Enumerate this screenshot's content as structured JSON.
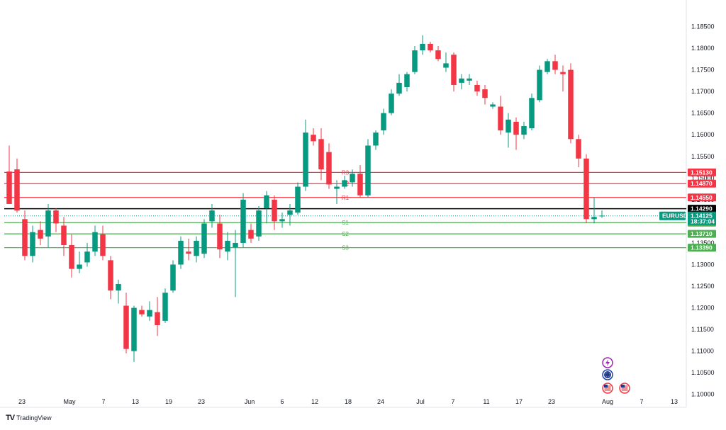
{
  "chart_data": {
    "type": "candlestick",
    "symbol": "EURUSD",
    "last_price": "1.14125",
    "countdown": "18:37:04",
    "ylim": [
      1.0975,
      1.1895
    ],
    "y_ticks": [
      "1.18500",
      "1.18000",
      "1.17500",
      "1.17000",
      "1.16500",
      "1.16000",
      "1.15500",
      "1.15000",
      "1.14500",
      "1.14000",
      "1.13500",
      "1.13000",
      "1.12500",
      "1.12000",
      "1.11500",
      "1.11000",
      "1.10500",
      "1.10000"
    ],
    "x_ticks": [
      "23",
      "May",
      "7",
      "13",
      "19",
      "23",
      "Jun",
      "6",
      "12",
      "18",
      "24",
      "Jul",
      "7",
      "11",
      "17",
      "23",
      "Aug",
      "7",
      "13"
    ],
    "levels": [
      {
        "label": "R3",
        "price": "1.15130",
        "value": 1.1513,
        "color": "#f23645"
      },
      {
        "label": "R2",
        "price": "1.14870",
        "value": 1.1487,
        "color": "#f23645"
      },
      {
        "label": "R1",
        "price": "1.14550",
        "value": 1.1455,
        "color": "#f23645"
      },
      {
        "label": "",
        "price": "1.14290",
        "value": 1.1429,
        "color": "#000000"
      },
      {
        "label": "S1",
        "price": "1.13970",
        "value": 1.1397,
        "color": "#4caf50"
      },
      {
        "label": "S2",
        "price": "1.13710",
        "value": 1.1371,
        "color": "#4caf50"
      },
      {
        "label": "S3",
        "price": "1.13390",
        "value": 1.1339,
        "color": "#4caf50"
      }
    ],
    "candles": [
      [
        1.1515,
        1.1575,
        1.1445,
        1.144
      ],
      [
        1.152,
        1.1545,
        1.142,
        1.1425
      ],
      [
        1.1405,
        1.1425,
        1.131,
        1.132
      ],
      [
        1.132,
        1.139,
        1.1305,
        1.1375
      ],
      [
        1.138,
        1.14,
        1.1345,
        1.136
      ],
      [
        1.1365,
        1.144,
        1.134,
        1.1425
      ],
      [
        1.1425,
        1.143,
        1.1375,
        1.1395
      ],
      [
        1.139,
        1.141,
        1.132,
        1.1345
      ],
      [
        1.1345,
        1.137,
        1.127,
        1.129
      ],
      [
        1.129,
        1.133,
        1.128,
        1.13
      ],
      [
        1.1305,
        1.135,
        1.1295,
        1.133
      ],
      [
        1.133,
        1.139,
        1.132,
        1.1375
      ],
      [
        1.137,
        1.139,
        1.131,
        1.132
      ],
      [
        1.131,
        1.132,
        1.122,
        1.124
      ],
      [
        1.124,
        1.1265,
        1.121,
        1.1255
      ],
      [
        1.1205,
        1.1235,
        1.1095,
        1.1105
      ],
      [
        1.11,
        1.1205,
        1.1075,
        1.12
      ],
      [
        1.1195,
        1.1205,
        1.118,
        1.1185
      ],
      [
        1.118,
        1.1215,
        1.117,
        1.1195
      ],
      [
        1.119,
        1.1225,
        1.1135,
        1.116
      ],
      [
        1.117,
        1.1245,
        1.1165,
        1.1235
      ],
      [
        1.124,
        1.131,
        1.1235,
        1.13
      ],
      [
        1.13,
        1.1365,
        1.129,
        1.1355
      ],
      [
        1.133,
        1.136,
        1.131,
        1.1325
      ],
      [
        1.132,
        1.1365,
        1.1305,
        1.1355
      ],
      [
        1.1325,
        1.1405,
        1.1315,
        1.1395
      ],
      [
        1.14,
        1.144,
        1.1385,
        1.1425
      ],
      [
        1.1395,
        1.1415,
        1.1315,
        1.1335
      ],
      [
        1.133,
        1.1375,
        1.131,
        1.1355
      ],
      [
        1.134,
        1.138,
        1.1225,
        1.135
      ],
      [
        1.135,
        1.1465,
        1.134,
        1.145
      ],
      [
        1.138,
        1.1395,
        1.135,
        1.136
      ],
      [
        1.1365,
        1.1435,
        1.1355,
        1.1425
      ],
      [
        1.143,
        1.147,
        1.1395,
        1.146
      ],
      [
        1.145,
        1.146,
        1.138,
        1.14
      ],
      [
        1.14,
        1.142,
        1.1385,
        1.1405
      ],
      [
        1.1415,
        1.144,
        1.139,
        1.1425
      ],
      [
        1.142,
        1.149,
        1.1415,
        1.148
      ],
      [
        1.148,
        1.1635,
        1.147,
        1.1605
      ],
      [
        1.16,
        1.1615,
        1.1575,
        1.1585
      ],
      [
        1.159,
        1.1615,
        1.1495,
        1.152
      ],
      [
        1.156,
        1.158,
        1.1475,
        1.1485
      ],
      [
        1.1475,
        1.1495,
        1.144,
        1.148
      ],
      [
        1.148,
        1.1505,
        1.1475,
        1.1495
      ],
      [
        1.149,
        1.152,
        1.148,
        1.151
      ],
      [
        1.151,
        1.153,
        1.1455,
        1.146
      ],
      [
        1.146,
        1.159,
        1.1455,
        1.1575
      ],
      [
        1.1575,
        1.161,
        1.1565,
        1.1605
      ],
      [
        1.161,
        1.166,
        1.16,
        1.165
      ],
      [
        1.165,
        1.1705,
        1.1645,
        1.1695
      ],
      [
        1.1695,
        1.174,
        1.169,
        1.172
      ],
      [
        1.171,
        1.1745,
        1.17,
        1.174
      ],
      [
        1.1745,
        1.1805,
        1.174,
        1.1795
      ],
      [
        1.1795,
        1.183,
        1.1785,
        1.181
      ],
      [
        1.181,
        1.1815,
        1.179,
        1.1795
      ],
      [
        1.1795,
        1.1805,
        1.177,
        1.1775
      ],
      [
        1.1755,
        1.179,
        1.1745,
        1.1765
      ],
      [
        1.1785,
        1.179,
        1.17,
        1.1715
      ],
      [
        1.172,
        1.174,
        1.1705,
        1.173
      ],
      [
        1.1725,
        1.174,
        1.1715,
        1.173
      ],
      [
        1.1715,
        1.1725,
        1.169,
        1.17
      ],
      [
        1.1705,
        1.1715,
        1.167,
        1.1685
      ],
      [
        1.1665,
        1.1675,
        1.166,
        1.167
      ],
      [
        1.1665,
        1.169,
        1.16,
        1.161
      ],
      [
        1.1605,
        1.165,
        1.157,
        1.1635
      ],
      [
        1.163,
        1.164,
        1.1565,
        1.16
      ],
      [
        1.16,
        1.163,
        1.159,
        1.162
      ],
      [
        1.1615,
        1.1695,
        1.161,
        1.1685
      ],
      [
        1.168,
        1.176,
        1.1675,
        1.175
      ],
      [
        1.1745,
        1.1775,
        1.174,
        1.177
      ],
      [
        1.177,
        1.1785,
        1.174,
        1.175
      ],
      [
        1.1745,
        1.176,
        1.17,
        1.174
      ],
      [
        1.175,
        1.1765,
        1.158,
        1.159
      ],
      [
        1.159,
        1.16,
        1.1525,
        1.1545
      ],
      [
        1.1545,
        1.1555,
        1.1395,
        1.1405
      ],
      [
        1.1405,
        1.1455,
        1.1395,
        1.141
      ],
      [
        1.1412,
        1.1425,
        1.1408,
        1.1413
      ]
    ]
  },
  "brand": {
    "name": "TradingView",
    "logo": "TV"
  },
  "icons": [
    "lightning-event-icon",
    "eu-flag-event-icon",
    "us-flag-event-icon",
    "us-flag-event-icon-2"
  ]
}
